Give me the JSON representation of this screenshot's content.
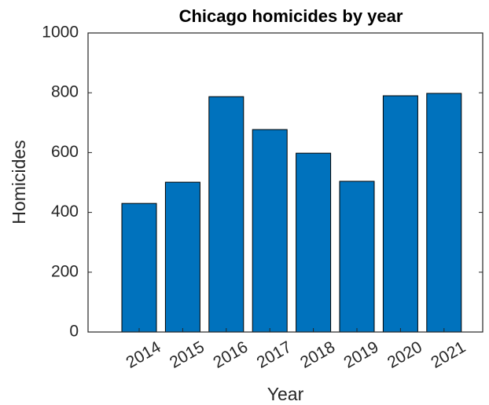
{
  "chart_data": {
    "type": "bar",
    "title": "Chicago homicides by year",
    "x_label": "Year",
    "y_label": "Homicides",
    "categories": [
      "2014",
      "2015",
      "2016",
      "2017",
      "2018",
      "2019",
      "2020",
      "2021"
    ],
    "values": [
      430,
      501,
      787,
      677,
      598,
      504,
      790,
      798
    ],
    "color": "#0072bd",
    "ylim": [
      0,
      1000
    ],
    "yticks": [
      0,
      200,
      400,
      600,
      800,
      1000
    ],
    "grid": false
  }
}
